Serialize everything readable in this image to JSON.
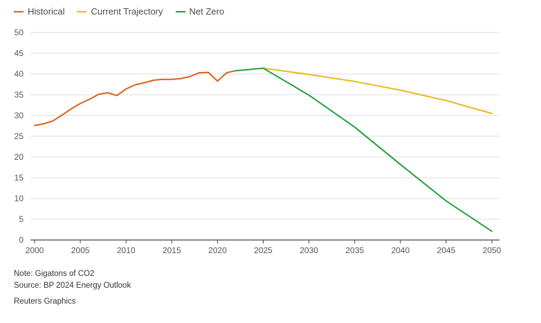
{
  "chart_data": {
    "type": "line",
    "title": "",
    "xlabel": "",
    "ylabel": "",
    "xlim": [
      2000,
      2050
    ],
    "ylim": [
      0,
      50
    ],
    "x_ticks": [
      2000,
      2005,
      2010,
      2015,
      2020,
      2025,
      2030,
      2035,
      2040,
      2045,
      2050
    ],
    "y_ticks": [
      0,
      5,
      10,
      15,
      20,
      25,
      30,
      35,
      40,
      45,
      50
    ],
    "grid": "horizontal",
    "legend_position": "top-left",
    "series": [
      {
        "name": "Historical",
        "color": "#d9601b",
        "points": [
          [
            2000,
            27.6
          ],
          [
            2001,
            28.0
          ],
          [
            2002,
            28.7
          ],
          [
            2003,
            30.1
          ],
          [
            2004,
            31.6
          ],
          [
            2005,
            32.9
          ],
          [
            2006,
            33.9
          ],
          [
            2007,
            35.1
          ],
          [
            2008,
            35.5
          ],
          [
            2009,
            34.8
          ],
          [
            2010,
            36.4
          ],
          [
            2011,
            37.4
          ],
          [
            2012,
            37.9
          ],
          [
            2013,
            38.5
          ],
          [
            2014,
            38.7
          ],
          [
            2015,
            38.7
          ],
          [
            2016,
            38.9
          ],
          [
            2017,
            39.4
          ],
          [
            2018,
            40.3
          ],
          [
            2019,
            40.4
          ],
          [
            2020,
            38.3
          ],
          [
            2021,
            40.3
          ],
          [
            2022,
            40.8
          ]
        ]
      },
      {
        "name": "Current Trajectory",
        "color": "#e8b820",
        "points": [
          [
            2025,
            41.4
          ],
          [
            2030,
            39.9
          ],
          [
            2035,
            38.2
          ],
          [
            2040,
            36.1
          ],
          [
            2045,
            33.6
          ],
          [
            2050,
            30.5
          ]
        ]
      },
      {
        "name": "Net Zero",
        "color": "#1fa03a",
        "points": [
          [
            2022,
            40.8
          ],
          [
            2025,
            41.4
          ],
          [
            2030,
            34.9
          ],
          [
            2035,
            27.2
          ],
          [
            2040,
            18.2
          ],
          [
            2045,
            9.4
          ],
          [
            2050,
            2.1
          ]
        ]
      }
    ]
  },
  "footer": {
    "note": "Note: Gigatons of CO2",
    "source": "Source: BP 2024 Energy Outlook",
    "credit": "Reuters Graphics"
  }
}
